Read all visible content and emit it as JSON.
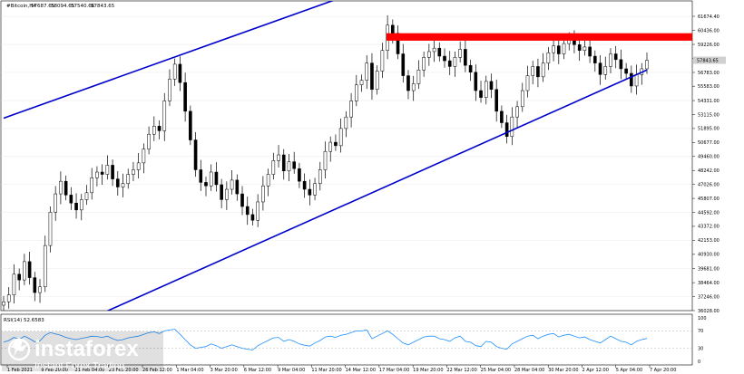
{
  "chart_data": {
    "type": "candlestick",
    "title": "#Bitcoin,H4",
    "ohlc_header": [
      "57687.65",
      "58094.65",
      "57540.66",
      "57843.65"
    ],
    "y_ticks": [
      "61674.40",
      "60436.00",
      "59226.00",
      "58002.00",
      "56783.00",
      "55583.00",
      "54331.00",
      "53115.00",
      "51895.00",
      "50677.00",
      "49460.00",
      "48242.00",
      "47026.00",
      "45807.00",
      "44592.00",
      "43372.00",
      "42153.00",
      "40930.00",
      "39681.00",
      "38464.00",
      "37246.00",
      "36028.00"
    ],
    "y_range": [
      36028,
      61674.4
    ],
    "last_price": "57843.65",
    "x_ticks": [
      "1 Feb 2021",
      "9 Feb 20:00",
      "21 Feb 04:00",
      "23 Feb 20:00",
      "26 Feb 12:00",
      "1 Mar 04:00",
      "3 Mar 20:00",
      "6 Mar 12:00",
      "9 Mar 04:00",
      "11 Mar 20:00",
      "14 Mar 12:00",
      "17 Mar 04:00",
      "19 Mar 20:00",
      "22 Mar 12:00",
      "25 Mar 04:00",
      "28 Mar 04:00",
      "30 Mar 20:00",
      "2 Apr 12:00",
      "5 Apr 04:00",
      "7 Apr 20:00"
    ],
    "close_path": [
      [
        0,
        36800
      ],
      [
        1,
        37400
      ],
      [
        2,
        39200
      ],
      [
        3,
        38700
      ],
      [
        4,
        40300
      ],
      [
        5,
        38900
      ],
      [
        6,
        37600
      ],
      [
        7,
        38100
      ],
      [
        8,
        41700
      ],
      [
        9,
        44600
      ],
      [
        10,
        46200
      ],
      [
        11,
        47300
      ],
      [
        12,
        46100
      ],
      [
        13,
        45400
      ],
      [
        14,
        44800
      ],
      [
        15,
        45700
      ],
      [
        16,
        46300
      ],
      [
        17,
        47600
      ],
      [
        18,
        48100
      ],
      [
        19,
        47900
      ],
      [
        20,
        48700
      ],
      [
        21,
        47500
      ],
      [
        22,
        46800
      ],
      [
        23,
        47100
      ],
      [
        24,
        47900
      ],
      [
        25,
        48300
      ],
      [
        26,
        48900
      ],
      [
        27,
        50100
      ],
      [
        28,
        51400
      ],
      [
        29,
        52100
      ],
      [
        30,
        51700
      ],
      [
        31,
        54300
      ],
      [
        32,
        56200
      ],
      [
        33,
        57500
      ],
      [
        34,
        55900
      ],
      [
        35,
        53400
      ],
      [
        36,
        50900
      ],
      [
        37,
        48300
      ],
      [
        38,
        47200
      ],
      [
        39,
        46900
      ],
      [
        40,
        48100
      ],
      [
        41,
        47000
      ],
      [
        42,
        45700
      ],
      [
        43,
        46600
      ],
      [
        44,
        47400
      ],
      [
        45,
        46200
      ],
      [
        46,
        45100
      ],
      [
        47,
        44400
      ],
      [
        48,
        43900
      ],
      [
        49,
        45500
      ],
      [
        50,
        46900
      ],
      [
        51,
        47900
      ],
      [
        52,
        49100
      ],
      [
        53,
        49600
      ],
      [
        54,
        48200
      ],
      [
        55,
        49000
      ],
      [
        56,
        48400
      ],
      [
        57,
        47300
      ],
      [
        58,
        46600
      ],
      [
        59,
        46100
      ],
      [
        60,
        47100
      ],
      [
        61,
        48300
      ],
      [
        62,
        49900
      ],
      [
        63,
        50700
      ],
      [
        64,
        50400
      ],
      [
        65,
        51900
      ],
      [
        66,
        52900
      ],
      [
        67,
        54300
      ],
      [
        68,
        55700
      ],
      [
        69,
        56100
      ],
      [
        70,
        57600
      ],
      [
        71,
        55300
      ],
      [
        72,
        56900
      ],
      [
        73,
        58700
      ],
      [
        74,
        60900
      ],
      [
        75,
        60200
      ],
      [
        76,
        58400
      ],
      [
        77,
        56500
      ],
      [
        78,
        55200
      ],
      [
        79,
        55800
      ],
      [
        80,
        57000
      ],
      [
        81,
        58100
      ],
      [
        82,
        58600
      ],
      [
        83,
        58900
      ],
      [
        84,
        58200
      ],
      [
        85,
        57800
      ],
      [
        86,
        57300
      ],
      [
        87,
        58100
      ],
      [
        88,
        58800
      ],
      [
        89,
        57400
      ],
      [
        90,
        56800
      ],
      [
        91,
        55200
      ],
      [
        92,
        54600
      ],
      [
        93,
        56000
      ],
      [
        94,
        55300
      ],
      [
        95,
        53400
      ],
      [
        96,
        52400
      ],
      [
        97,
        51200
      ],
      [
        98,
        52900
      ],
      [
        99,
        53800
      ],
      [
        100,
        55200
      ],
      [
        101,
        56500
      ],
      [
        102,
        57300
      ],
      [
        103,
        56400
      ],
      [
        104,
        57600
      ],
      [
        105,
        58500
      ],
      [
        106,
        59100
      ],
      [
        107,
        58400
      ],
      [
        108,
        59300
      ],
      [
        109,
        59600
      ],
      [
        110,
        59200
      ],
      [
        111,
        58700
      ],
      [
        112,
        59000
      ],
      [
        113,
        58200
      ],
      [
        114,
        57600
      ],
      [
        115,
        56600
      ],
      [
        116,
        57300
      ],
      [
        117,
        58400
      ],
      [
        118,
        57900
      ],
      [
        119,
        57100
      ],
      [
        120,
        56700
      ],
      [
        121,
        55600
      ],
      [
        122,
        56600
      ],
      [
        123,
        57100
      ],
      [
        124,
        57843.65
      ]
    ],
    "resistance_zone": [
      59550,
      60200
    ],
    "upper_channel": [
      [
        0,
        52800
      ],
      [
        70,
        64100
      ]
    ],
    "lower_channel": [
      [
        20,
        36000
      ],
      [
        124,
        57000
      ]
    ],
    "rsi": {
      "label": "RSI(14) 52.6583",
      "ticks": [
        "100",
        "70",
        "30",
        "0"
      ],
      "values": [
        44,
        48,
        55,
        50,
        58,
        52,
        45,
        47,
        60,
        66,
        63,
        60,
        55,
        52,
        50,
        53,
        55,
        58,
        57,
        55,
        58,
        52,
        48,
        50,
        54,
        56,
        58,
        62,
        66,
        68,
        64,
        70,
        72,
        74,
        62,
        50,
        38,
        30,
        32,
        34,
        40,
        36,
        30,
        34,
        38,
        34,
        30,
        28,
        26,
        36,
        42,
        48,
        54,
        55,
        46,
        50,
        46,
        40,
        37,
        35,
        42,
        48,
        56,
        58,
        55,
        60,
        62,
        66,
        70,
        70,
        72,
        52,
        58,
        64,
        70,
        62,
        52,
        42,
        38,
        44,
        50,
        56,
        58,
        58,
        52,
        50,
        46,
        54,
        58,
        46,
        44,
        36,
        34,
        46,
        44,
        34,
        30,
        28,
        40,
        46,
        52,
        58,
        60,
        52,
        58,
        62,
        64,
        56,
        60,
        62,
        58,
        54,
        56,
        50,
        46,
        42,
        50,
        58,
        52,
        46,
        44,
        38,
        46,
        50,
        52.66
      ]
    }
  },
  "watermark": {
    "brand": "instaforex",
    "tagline": "Instant Forex Trading"
  },
  "colors": {
    "channel": "#0000cc",
    "resistance": "#ff0000",
    "rsi_line": "#1e90ff",
    "price_box": "#d0d0d0"
  }
}
